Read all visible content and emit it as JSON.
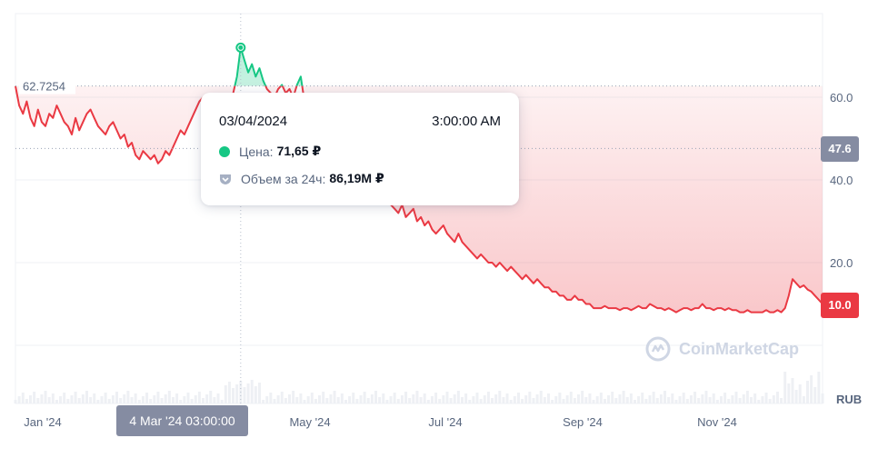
{
  "chart_data": {
    "type": "line",
    "currency": "RUB",
    "x_ticks": [
      "Jan '24",
      "May '24",
      "Jul '24",
      "Sep '24",
      "Nov '24"
    ],
    "y_ticks": [
      "60.0",
      "40.0",
      "20.0"
    ],
    "ylim": [
      0,
      80
    ],
    "reference_value": 62.7254,
    "reference_label": "62.7254",
    "current_value": 47.6,
    "current_label": "47.6",
    "last_value": 10.0,
    "last_label": "10.0",
    "colors": {
      "up": "#16c784",
      "down": "#ea3943",
      "grid": "#eff2f5",
      "axis_text": "#58667e"
    },
    "series": [
      {
        "values": [
          62.7,
          58,
          56,
          59,
          55,
          53,
          57,
          54,
          53,
          56,
          55,
          58,
          56,
          54,
          53,
          51,
          55,
          52,
          54,
          56,
          57,
          55,
          53,
          52,
          51,
          53,
          54,
          52,
          50,
          51,
          48,
          49,
          46,
          45,
          47,
          46,
          45,
          46,
          44,
          45,
          47,
          46,
          48,
          50,
          52,
          51,
          53,
          55,
          57,
          59,
          60,
          58,
          57,
          55,
          56,
          57,
          59,
          60,
          61,
          65,
          72,
          69,
          66,
          68,
          65,
          67,
          64,
          62,
          61,
          60,
          62,
          63,
          61,
          62,
          60,
          63,
          65,
          59,
          56,
          54,
          57,
          55,
          53,
          50,
          48,
          46,
          45,
          46,
          43,
          44,
          42,
          43,
          40,
          41,
          39,
          37,
          36,
          38,
          35,
          36,
          34,
          33,
          32,
          34,
          31,
          32,
          33,
          30,
          31,
          29,
          30,
          28,
          27,
          28,
          29,
          27,
          26,
          25,
          27,
          25,
          24,
          23,
          22,
          21,
          22,
          21,
          20,
          20,
          19,
          20,
          19,
          18,
          19,
          18,
          17,
          16,
          17,
          16,
          15,
          16,
          15,
          14,
          14,
          13,
          13,
          12,
          12,
          11,
          11,
          12,
          11,
          11,
          10,
          10,
          9,
          9,
          9,
          9.5,
          9,
          9,
          9,
          8.5,
          9,
          9,
          8.5,
          9,
          9.5,
          9,
          9,
          10,
          9.5,
          9,
          9,
          8.5,
          9,
          8.5,
          8,
          8.5,
          9,
          9,
          8.5,
          9,
          9,
          10,
          9,
          9,
          8.5,
          9,
          9,
          8.5,
          9,
          8.5,
          8.5,
          8,
          8,
          8.5,
          8,
          8,
          8,
          8,
          8.5,
          8,
          8,
          8.5,
          8,
          9,
          12,
          16,
          15,
          14,
          14.5,
          13.5,
          13,
          12,
          11,
          10
        ]
      }
    ]
  },
  "tooltip": {
    "date": "03/04/2024",
    "time": "3:00:00 AM",
    "price_label": "Цена:",
    "price_value": "71,65 ₽",
    "volume_label": "Объем за 24ч:",
    "volume_value": "86,19M ₽"
  },
  "hover_date_label": "4 Mar '24 03:00:00",
  "watermark": "CoinMarketCap"
}
